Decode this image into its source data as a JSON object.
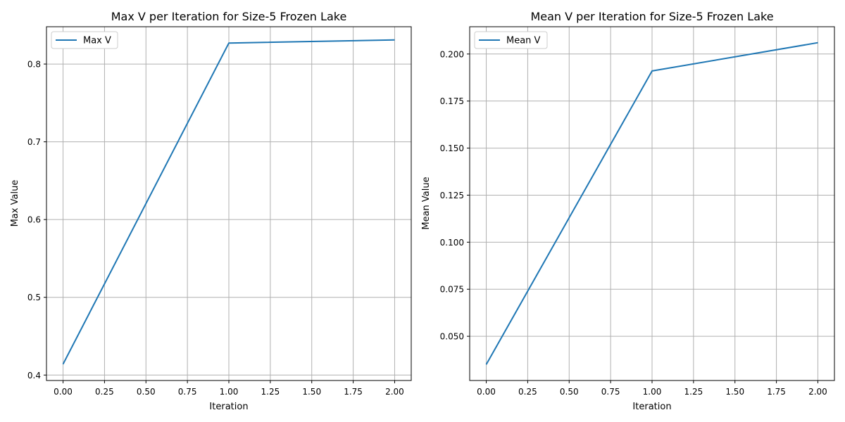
{
  "chart_data": [
    {
      "type": "line",
      "title": "Max V per Iteration for Size-5 Frozen Lake",
      "xlabel": "Iteration",
      "ylabel": "Max Value",
      "x": [
        0,
        1,
        2
      ],
      "series": [
        {
          "name": "Max V",
          "values": [
            0.414,
            0.827,
            0.831
          ],
          "color": "#1f77b4"
        }
      ],
      "xlim": [
        -0.1,
        2.1
      ],
      "ylim": [
        0.393,
        0.848
      ],
      "xticks": [
        0.0,
        0.25,
        0.5,
        0.75,
        1.0,
        1.25,
        1.5,
        1.75,
        2.0
      ],
      "xtick_labels": [
        "0.00",
        "0.25",
        "0.50",
        "0.75",
        "1.00",
        "1.25",
        "1.50",
        "1.75",
        "2.00"
      ],
      "yticks": [
        0.4,
        0.5,
        0.6,
        0.7,
        0.8
      ],
      "ytick_labels": [
        "0.4",
        "0.5",
        "0.6",
        "0.7",
        "0.8"
      ],
      "grid": true,
      "legend_position": "upper-left"
    },
    {
      "type": "line",
      "title": "Mean V per Iteration for Size-5 Frozen Lake",
      "xlabel": "Iteration",
      "ylabel": "Mean Value",
      "x": [
        0,
        1,
        2
      ],
      "series": [
        {
          "name": "Mean V",
          "values": [
            0.035,
            0.191,
            0.206
          ],
          "color": "#1f77b4"
        }
      ],
      "xlim": [
        -0.1,
        2.1
      ],
      "ylim": [
        0.0265,
        0.2145
      ],
      "xticks": [
        0.0,
        0.25,
        0.5,
        0.75,
        1.0,
        1.25,
        1.5,
        1.75,
        2.0
      ],
      "xtick_labels": [
        "0.00",
        "0.25",
        "0.50",
        "0.75",
        "1.00",
        "1.25",
        "1.50",
        "1.75",
        "2.00"
      ],
      "yticks": [
        0.05,
        0.075,
        0.1,
        0.125,
        0.15,
        0.175,
        0.2
      ],
      "ytick_labels": [
        "0.050",
        "0.075",
        "0.100",
        "0.125",
        "0.150",
        "0.175",
        "0.200"
      ],
      "grid": true,
      "legend_position": "upper-left"
    }
  ]
}
